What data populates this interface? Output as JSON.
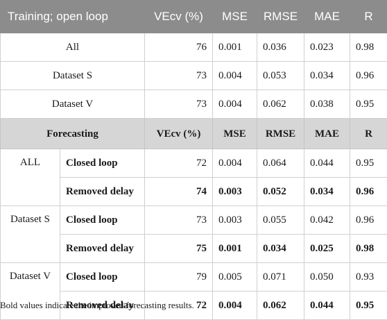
{
  "header1": [
    "Training; open loop",
    "VEcv (%)",
    "MSE",
    "RMSE",
    "MAE",
    "R"
  ],
  "training_rows": [
    {
      "label": "All",
      "vecv": "76",
      "mse": "0.001",
      "rmse": "0.036",
      "mae": "0.023",
      "r": "0.98"
    },
    {
      "label": "Dataset S",
      "vecv": "73",
      "mse": "0.004",
      "rmse": "0.053",
      "mae": "0.034",
      "r": "0.96"
    },
    {
      "label": "Dataset V",
      "vecv": "73",
      "mse": "0.004",
      "rmse": "0.062",
      "mae": "0.038",
      "r": "0.95"
    }
  ],
  "header2": [
    "Forecasting",
    "VEcv (%)",
    "MSE",
    "RMSE",
    "MAE",
    "R"
  ],
  "forecast_groups": [
    {
      "group": "ALL",
      "rows": [
        {
          "method": "Closed loop",
          "vecv": "72",
          "mse": "0.004",
          "rmse": "0.064",
          "mae": "0.044",
          "r": "0.95"
        },
        {
          "method": "Removed delay",
          "vecv": "74",
          "mse": "0.003",
          "rmse": "0.052",
          "mae": "0.034",
          "r": "0.96"
        }
      ]
    },
    {
      "group": "Dataset S",
      "rows": [
        {
          "method": "Closed loop",
          "vecv": "73",
          "mse": "0.003",
          "rmse": "0.055",
          "mae": "0.042",
          "r": "0.96"
        },
        {
          "method": "Removed delay",
          "vecv": "75",
          "mse": "0.001",
          "rmse": "0.034",
          "mae": "0.025",
          "r": "0.98"
        }
      ]
    },
    {
      "group": "Dataset V",
      "rows": [
        {
          "method": "Closed loop",
          "vecv": "79",
          "mse": "0.005",
          "rmse": "0.071",
          "mae": "0.050",
          "r": "0.93"
        },
        {
          "method": "Removed delay",
          "vecv": "72",
          "mse": "0.004",
          "rmse": "0.062",
          "mae": "0.044",
          "r": "0.95"
        }
      ]
    }
  ],
  "footnote": "Bold values indicate the improved forecasting results."
}
